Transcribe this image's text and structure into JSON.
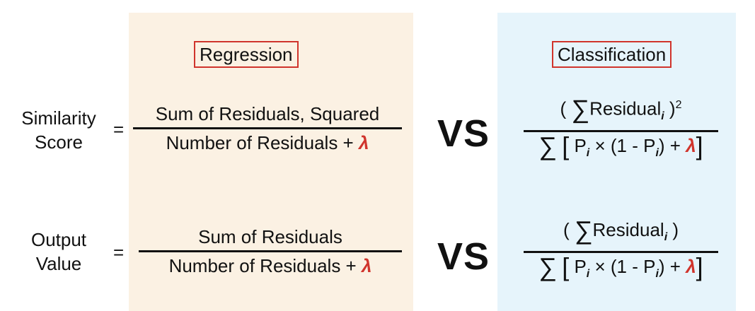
{
  "regression": {
    "title": "Regression",
    "similarity": {
      "numerator": "Sum of Residuals, Squared",
      "denominator": "Number of Residuals + ",
      "lambda": "λ"
    },
    "output": {
      "numerator": "Sum of Residuals",
      "denominator": "Number of Residuals + ",
      "lambda": "λ"
    }
  },
  "classification": {
    "title": "Classification",
    "similarity": {
      "open_paren": "(",
      "sigma": "∑",
      "residual": "Residual",
      "residual_sub": "i",
      "close_paren": " )",
      "power": "2",
      "den_sigma": "∑",
      "den_open": "[",
      "den_p1": " P",
      "den_i1": "i",
      "den_mid": " × (1 - P",
      "den_i2": "i",
      "den_tail": ") + ",
      "lambda": "λ",
      "den_close": "]"
    },
    "output": {
      "open_paren": "(",
      "sigma": "∑",
      "residual": "Residual",
      "residual_sub": "i",
      "close_paren": " )",
      "den_sigma": "∑",
      "den_open": "[",
      "den_p1": " P",
      "den_i1": "i",
      "den_mid": " × (1 - P",
      "den_i2": "i",
      "den_tail": ") + ",
      "lambda": "λ",
      "den_close": "]"
    }
  },
  "rows": {
    "similarity_line1": "Similarity",
    "similarity_line2": "Score",
    "output_line1": "Output",
    "output_line2": "Value",
    "equals": "="
  },
  "vs": "VS"
}
